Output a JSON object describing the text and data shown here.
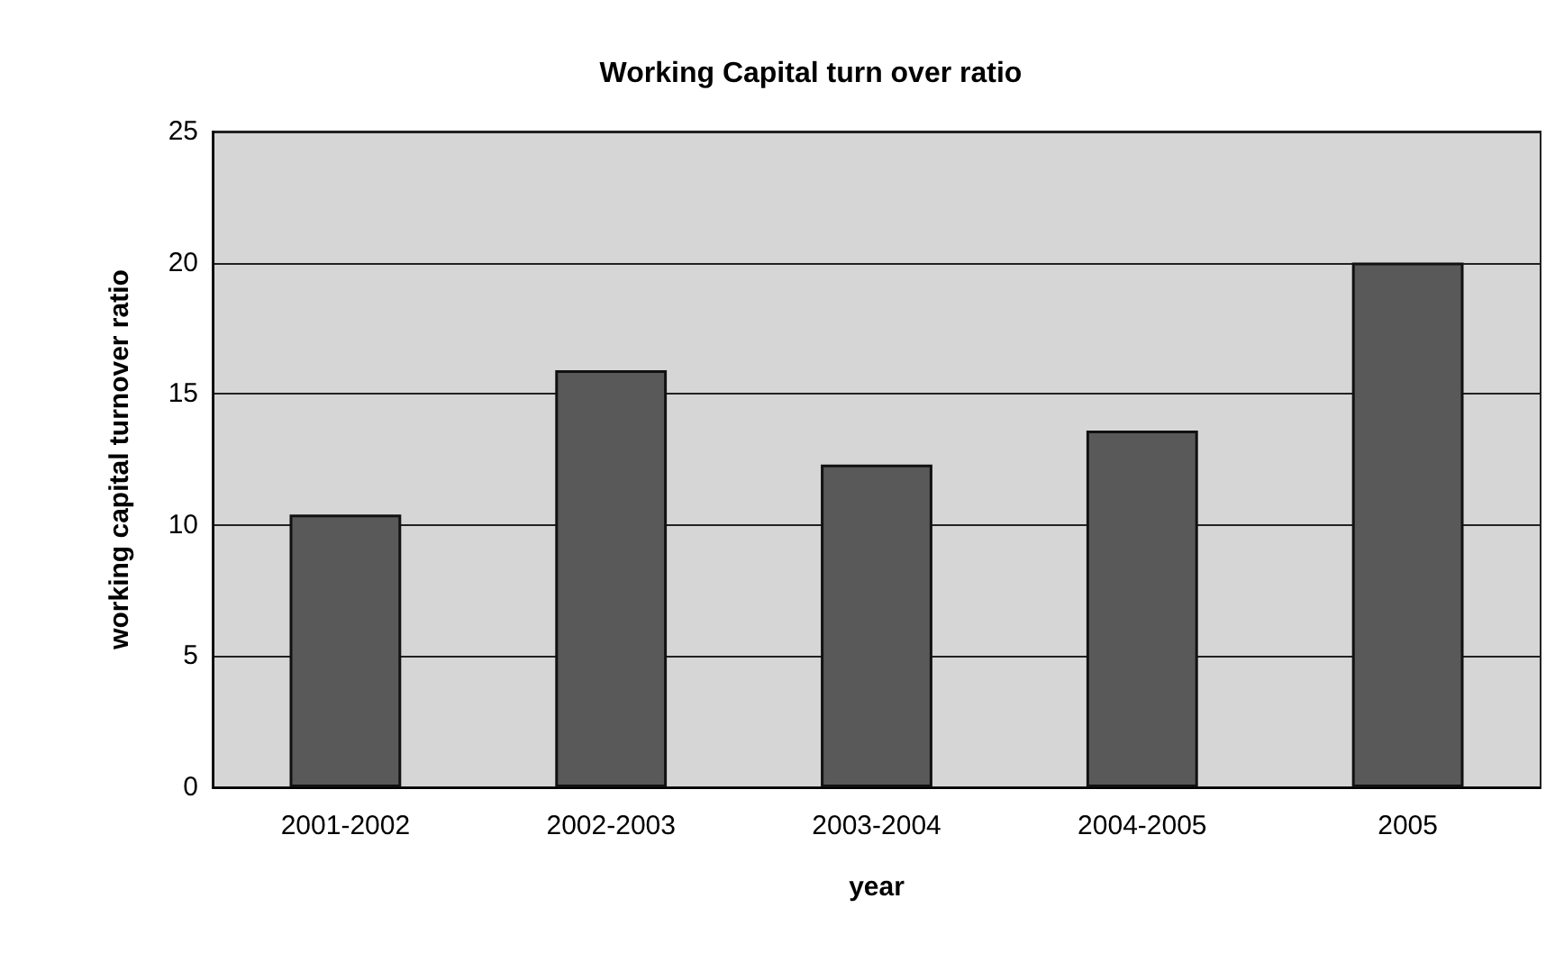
{
  "chart_data": {
    "type": "bar",
    "title": "Working Capital turn over ratio",
    "xlabel": "year",
    "ylabel": "working capital turnover ratio",
    "categories": [
      "2001-2002",
      "2002-2003",
      "2003-2004",
      "2004-2005",
      "2005"
    ],
    "values": [
      10.4,
      15.9,
      12.3,
      13.6,
      20
    ],
    "color": "#595959",
    "ylim": [
      0,
      25
    ],
    "yticks": [
      0,
      5,
      10,
      15,
      20,
      25
    ],
    "grid": "y"
  }
}
